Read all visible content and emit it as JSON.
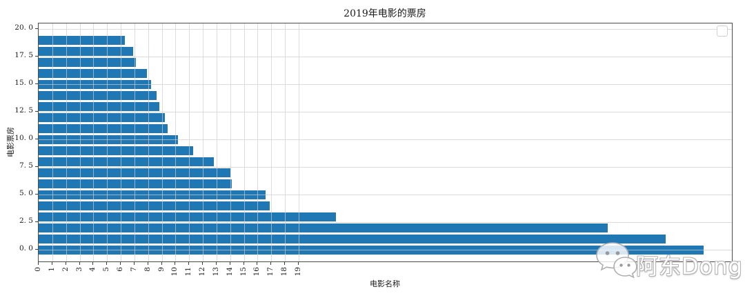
{
  "chart_data": {
    "type": "bar",
    "orientation": "horizontal",
    "title": "2019年电影的票房",
    "xlabel": "电影名称",
    "ylabel": "电影票房",
    "x_tick_labels": [
      "0",
      "1",
      "2",
      "3",
      "4",
      "5",
      "6",
      "7",
      "8",
      "9",
      "10",
      "11",
      "12",
      "13",
      "14",
      "15",
      "16",
      "17",
      "18",
      "19"
    ],
    "y_tick_labels": [
      "0. 0",
      "2. 5",
      "5. 0",
      "7. 5",
      "10. 0",
      "12. 5",
      "15. 0",
      "17. 5",
      "20. 0"
    ],
    "y_tick_values": [
      0,
      2.5,
      5,
      7.5,
      10,
      12.5,
      15,
      17.5,
      20
    ],
    "y_positions": [
      0,
      1,
      2,
      3,
      4,
      5,
      6,
      7,
      8,
      9,
      10,
      11,
      12,
      13,
      14,
      15,
      16,
      17,
      18,
      19
    ],
    "values": [
      48.6,
      45.8,
      41.6,
      21.7,
      16.9,
      16.6,
      14.1,
      14.0,
      12.8,
      11.3,
      10.2,
      9.4,
      9.2,
      8.8,
      8.6,
      8.2,
      7.9,
      7.1,
      6.9,
      6.3
    ],
    "xlim": [
      0,
      51.2
    ],
    "ylim": [
      -1.2,
      20.5
    ],
    "grid": true,
    "bar_color": "#1f77b4",
    "legend": {
      "visible": true,
      "entries": []
    }
  },
  "watermark": {
    "text": "阿东Dong",
    "icon": "wechat-icon"
  }
}
